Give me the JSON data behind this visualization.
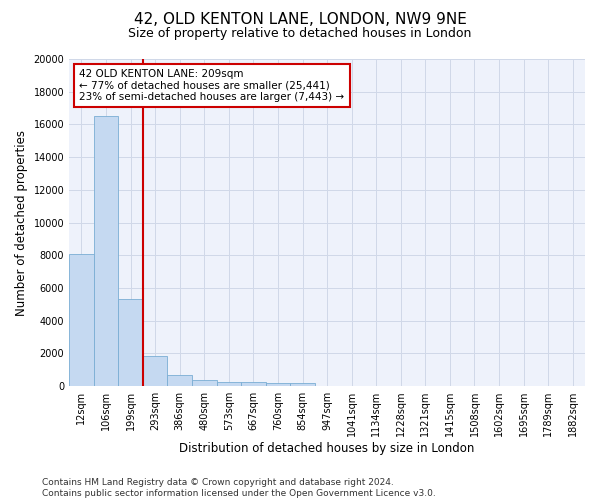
{
  "title_line1": "42, OLD KENTON LANE, LONDON, NW9 9NE",
  "title_line2": "Size of property relative to detached houses in London",
  "xlabel": "Distribution of detached houses by size in London",
  "ylabel": "Number of detached properties",
  "categories": [
    "12sqm",
    "106sqm",
    "199sqm",
    "293sqm",
    "386sqm",
    "480sqm",
    "573sqm",
    "667sqm",
    "760sqm",
    "854sqm",
    "947sqm",
    "1041sqm",
    "1134sqm",
    "1228sqm",
    "1321sqm",
    "1415sqm",
    "1508sqm",
    "1602sqm",
    "1695sqm",
    "1789sqm",
    "1882sqm"
  ],
  "values": [
    8100,
    16500,
    5300,
    1850,
    650,
    350,
    270,
    230,
    200,
    175,
    0,
    0,
    0,
    0,
    0,
    0,
    0,
    0,
    0,
    0,
    0
  ],
  "bar_color": "#c5d9f1",
  "bar_edge_color": "#7aadd4",
  "vline_color": "#cc0000",
  "annotation_text": "42 OLD KENTON LANE: 209sqm\n← 77% of detached houses are smaller (25,441)\n23% of semi-detached houses are larger (7,443) →",
  "annotation_box_color": "#ffffff",
  "annotation_box_edge": "#cc0000",
  "ylim": [
    0,
    20000
  ],
  "yticks": [
    0,
    2000,
    4000,
    6000,
    8000,
    10000,
    12000,
    14000,
    16000,
    18000,
    20000
  ],
  "grid_color": "#d0d8e8",
  "bg_color": "#eef2fb",
  "footer": "Contains HM Land Registry data © Crown copyright and database right 2024.\nContains public sector information licensed under the Open Government Licence v3.0.",
  "title_fontsize": 11,
  "subtitle_fontsize": 9,
  "axis_label_fontsize": 8.5,
  "tick_fontsize": 7,
  "footer_fontsize": 6.5
}
